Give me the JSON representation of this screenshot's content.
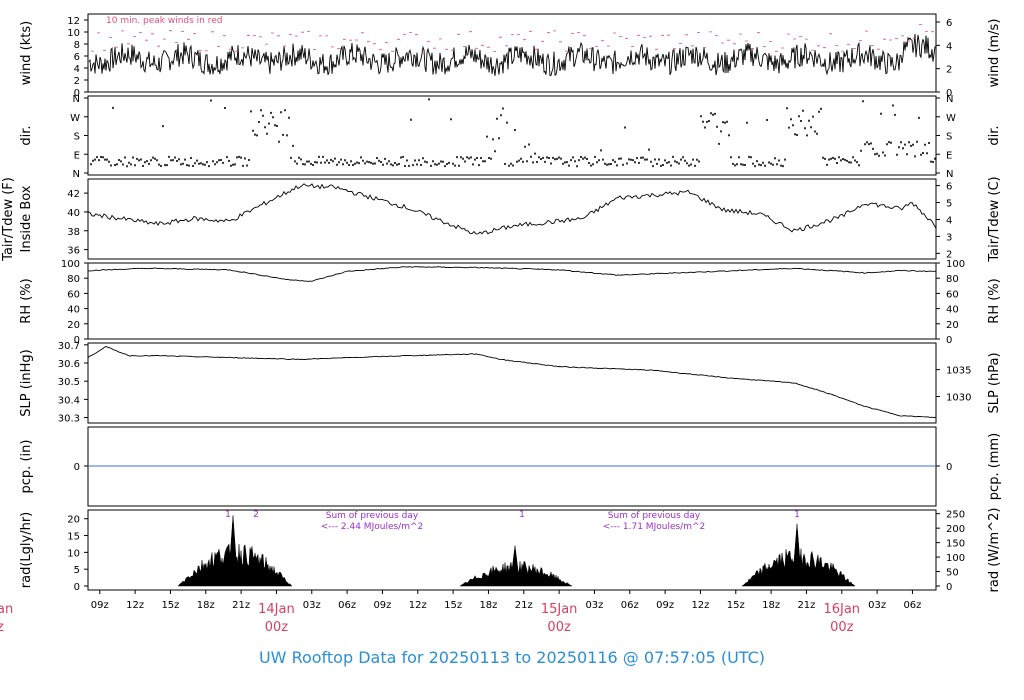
{
  "footer": {
    "prefix": "UW Rooftop Data for",
    "start": "20250113",
    "sep": "to",
    "end": "20250116 @ 07:57:05",
    "tz": "(UTC)"
  },
  "colors": {
    "axis": "#000000",
    "line": "#000000",
    "peak": "#e0507a",
    "pcp": "#3a6fd0",
    "annot": "#9b30d0",
    "day": "#d84060",
    "footer": "#2a8fd8"
  },
  "x_axis": {
    "ticks": [
      "09z",
      "12z",
      "15z",
      "18z",
      "21z",
      "00z",
      "03z",
      "06z",
      "09z",
      "12z",
      "15z",
      "18z",
      "21z",
      "00z",
      "03z",
      "06z",
      "09z",
      "12z",
      "15z",
      "18z",
      "21z",
      "00z",
      "03z",
      "06z"
    ],
    "day_labels": [
      {
        "date": "14Jan",
        "hour": "00z"
      },
      {
        "date": "15Jan",
        "hour": "00z"
      },
      {
        "date": "16Jan",
        "hour": "00z"
      }
    ],
    "cut_left_labels": {
      "date": "an",
      "hour": "z"
    }
  },
  "chart_data": [
    {
      "type": "line",
      "panel": "wind",
      "ylabel_left": "wind (kts)",
      "ylabel_right": "wind (m/s)",
      "ylim": [
        0,
        13
      ],
      "ticks_left": [
        "0",
        "2",
        "4",
        "6",
        "8",
        "10",
        "12"
      ],
      "ticks_right": [
        "0",
        "2",
        "4",
        "6"
      ],
      "annotation": "10 min. peak winds in red",
      "series": [
        {
          "name": "wind",
          "mean": 5.5,
          "amp": 1.6
        },
        {
          "name": "peak",
          "mean": 8.5,
          "amp": 2
        }
      ]
    },
    {
      "type": "scatter",
      "panel": "dir",
      "ylabel_left": "dir.",
      "ylabel_right": "dir.",
      "ticks_left": [
        "N",
        "E",
        "S",
        "W",
        "N"
      ],
      "ticks_right": [
        "N",
        "E",
        "S",
        "W",
        "N"
      ]
    },
    {
      "type": "line",
      "panel": "tair",
      "ylabel_left": "Tair/Tdew (F)",
      "ylabel_left2": "Inside Box",
      "ylabel_right": "Tair/Tdew (C)",
      "ylim": [
        35,
        43.5
      ],
      "ticks_left": [
        "36",
        "38",
        "40",
        "42"
      ],
      "ticks_right": [
        "2",
        "3",
        "4",
        "5",
        "6"
      ],
      "x_hours": [
        0,
        6,
        9,
        12,
        18,
        21,
        27,
        33,
        36,
        42,
        45,
        51,
        54,
        57,
        60,
        64,
        66,
        69,
        70,
        72
      ],
      "values": [
        39.8,
        38.7,
        39.3,
        39.0,
        42.8,
        42.6,
        40.5,
        37.6,
        38.5,
        39.3,
        41.5,
        42.1,
        40.2,
        39.8,
        38.0,
        39.5,
        41.0,
        40.3,
        41.0,
        38.5
      ]
    },
    {
      "type": "line",
      "panel": "rh",
      "ylabel_left": "RH (%)",
      "ylabel_right": "RH (%)",
      "ylim": [
        0,
        100
      ],
      "ticks_left": [
        "0",
        "20",
        "40",
        "60",
        "80",
        "100"
      ],
      "ticks_right": [
        "0",
        "20",
        "40",
        "60",
        "80",
        "100"
      ],
      "x_hours": [
        0,
        5,
        12,
        17,
        19,
        22,
        27,
        33,
        40,
        45,
        50,
        60,
        66,
        69,
        72
      ],
      "values": [
        90,
        93,
        91,
        78,
        76,
        89,
        95,
        94,
        91,
        84,
        87,
        93,
        87,
        90,
        89
      ]
    },
    {
      "type": "line",
      "panel": "slp",
      "ylabel_left": "SLP (inHg)",
      "ylabel_right": "SLP (hPa)",
      "ylim": [
        30.27,
        30.71
      ],
      "ticks_left": [
        "30.3",
        "30.4",
        "30.5",
        "30.6",
        "30.7"
      ],
      "ticks_right": [
        "1030",
        "1035"
      ],
      "x_hours": [
        0,
        1.5,
        3.5,
        6,
        12,
        18,
        27,
        33,
        35,
        40,
        48,
        54,
        60,
        63,
        66,
        69,
        72
      ],
      "values": [
        30.63,
        30.69,
        30.64,
        30.64,
        30.63,
        30.62,
        30.64,
        30.65,
        30.62,
        30.58,
        30.56,
        30.52,
        30.49,
        30.43,
        30.36,
        30.31,
        30.3
      ]
    },
    {
      "type": "line",
      "panel": "pcp",
      "ylabel_left": "pcp. (in)",
      "ylabel_right": "pcp. (mm)",
      "ticks_left": [
        "0"
      ],
      "ticks_right": [
        "0"
      ],
      "values": [
        0
      ]
    },
    {
      "type": "area",
      "panel": "rad",
      "ylabel_left": "rad(Lgly/hr)",
      "ylabel_right": "rad (W/m^2)",
      "ylim": [
        0,
        22
      ],
      "ticks_left": [
        "0",
        "5",
        "10",
        "15",
        "20"
      ],
      "ticks_right": [
        "0",
        "50",
        "100",
        "150",
        "200",
        "250"
      ],
      "daily_peaks": [
        21,
        12,
        18.5
      ],
      "markers": [
        "1",
        "2",
        "1",
        "1"
      ],
      "daily_notes": [
        {
          "line1": "Sum of previous day",
          "line2": "<--- 2.44 MJoules/m^2"
        },
        {
          "line1": "Sum of previous day",
          "line2": "<--- 1.71 MJoules/m^2"
        }
      ]
    }
  ]
}
